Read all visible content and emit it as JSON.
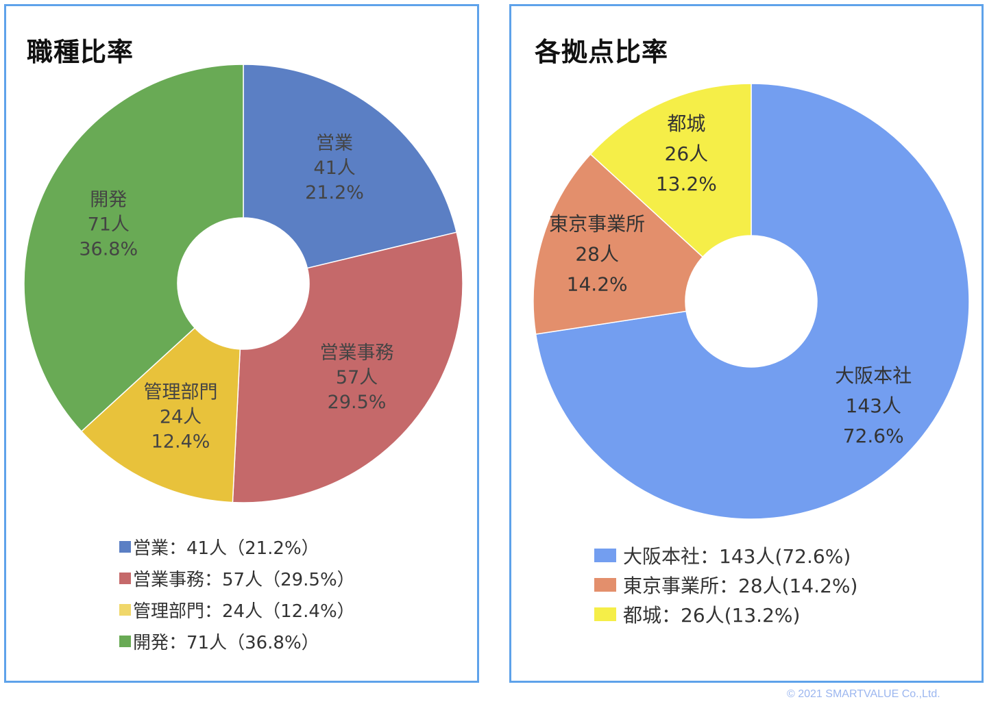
{
  "chart_data": [
    {
      "type": "donut",
      "title": "職種比率",
      "categories": [
        "営業",
        "営業事務",
        "管理部門",
        "開発"
      ],
      "values": [
        41,
        57,
        24,
        71
      ],
      "percents": [
        "21.2%",
        "29.5%",
        "12.4%",
        "36.8%"
      ],
      "counts": [
        "41人",
        "57人",
        "24人",
        "71人"
      ],
      "colors": [
        "#5b7fc4",
        "#c5696a",
        "#e8c23b",
        "#69aa55"
      ],
      "legend": [
        "営業：41人（21.2%）",
        "営業事務：57人（29.5%）",
        "管理部門：24人（12.4%）",
        "開発：71人（36.8%）"
      ],
      "legend_placement": "bottom"
    },
    {
      "type": "donut",
      "title": "各拠点比率",
      "categories": [
        "大阪本社",
        "東京事業所",
        "都城"
      ],
      "values": [
        143,
        28,
        26
      ],
      "percents": [
        "72.6%",
        "14.2%",
        "13.2%"
      ],
      "counts": [
        "143人",
        "28人",
        "26人"
      ],
      "colors": [
        "#739ef0",
        "#e38f6c",
        "#f5ee48"
      ],
      "legend": [
        "大阪本社：143人(72.6%)",
        "東京事業所：28人(14.2%)",
        "都城：26人(13.2%)"
      ],
      "legend_placement": "bottom"
    }
  ],
  "copyright": "© 2021 SMARTVALUE Co.,Ltd."
}
